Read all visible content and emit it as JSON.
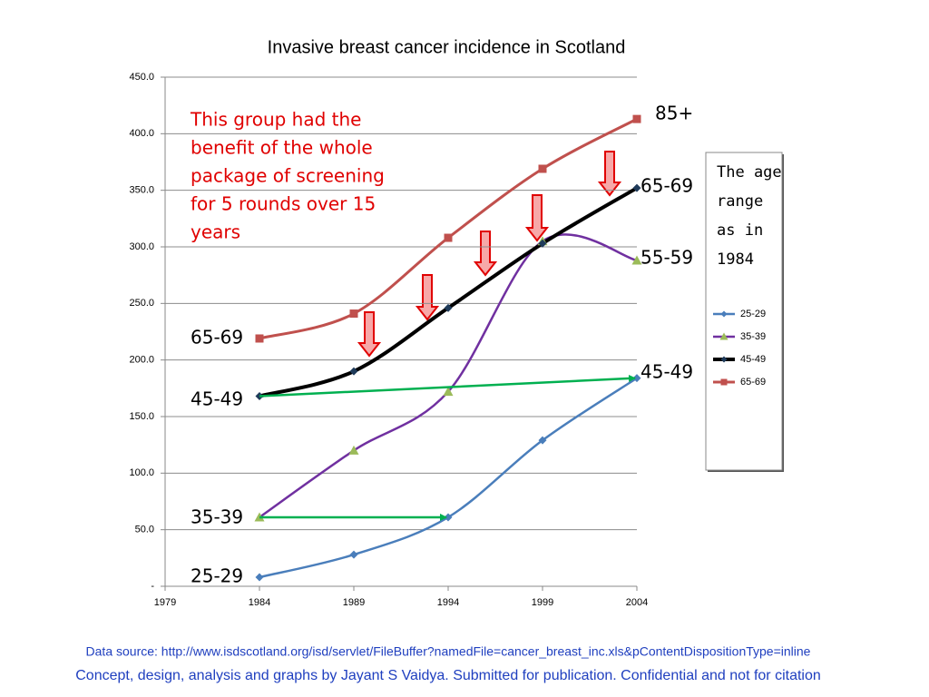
{
  "chart_data": {
    "type": "line",
    "title": "Invasive breast cancer incidence in Scotland",
    "x": [
      1984,
      1989,
      1994,
      1999,
      2004
    ],
    "xlim": [
      1979,
      2004
    ],
    "xticks": [
      1979,
      1984,
      1989,
      1994,
      1999,
      2004
    ],
    "ylim": [
      0,
      450
    ],
    "yticks": [
      {
        "value": 0,
        "label": "-"
      },
      {
        "value": 50,
        "label": "50.0"
      },
      {
        "value": 100,
        "label": "100.0"
      },
      {
        "value": 150,
        "label": "150.0"
      },
      {
        "value": 200,
        "label": "200.0"
      },
      {
        "value": 250,
        "label": "250.0"
      },
      {
        "value": 300,
        "label": "300.0"
      },
      {
        "value": 350,
        "label": "350.0"
      },
      {
        "value": 400,
        "label": "400.0"
      },
      {
        "value": 450,
        "label": "450.0"
      }
    ],
    "grid": true,
    "smooth": true,
    "series": [
      {
        "name": "25-29",
        "color": "#4a7ebb",
        "marker": "diamond",
        "marker_color": "#4a7ebb",
        "line_width": 2.5,
        "values": [
          8,
          28,
          61,
          129,
          184
        ]
      },
      {
        "name": "35-39",
        "color": "#7030a0",
        "marker": "triangle",
        "marker_color": "#9bbb59",
        "line_width": 2.5,
        "values": [
          61,
          120,
          172,
          305,
          288
        ]
      },
      {
        "name": "45-49",
        "color": "#000000",
        "marker": "diamond",
        "marker_color": "#1f3b5a",
        "line_width": 4,
        "values": [
          168,
          190,
          246,
          303,
          352
        ]
      },
      {
        "name": "65-69",
        "color": "#c0504d",
        "marker": "square",
        "marker_color": "#c0504d",
        "line_width": 3,
        "values": [
          219,
          241,
          308,
          369,
          413
        ]
      }
    ],
    "legend_title": [
      "The age",
      "range",
      "as in",
      "1984"
    ],
    "annotation": [
      "This group had the",
      "benefit of the whole",
      "package of screening",
      "for 5 rounds over 15",
      "years"
    ],
    "left_labels": [
      "65-69",
      "45-49",
      "35-39",
      "25-29"
    ],
    "right_labels": [
      "85+",
      "65-69",
      "55-59",
      "45-49"
    ],
    "footer": [
      "Data source: http://www.isdscotland.org/isd/servlet/FileBuffer?namedFile=cancer_breast_inc.xls&pContentDispositionType=inline",
      "Concept, design, analysis and graphs by Jayant S Vaidya.  Submitted for publication. Confidential and not for citation"
    ]
  }
}
